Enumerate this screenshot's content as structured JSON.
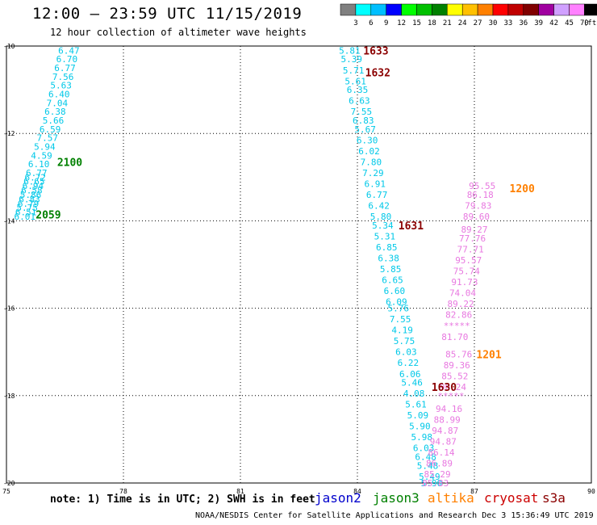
{
  "header": {
    "title": "12:00 – 23:59 UTC 11/15/2019",
    "subtitle": "12 hour collection of altimeter wave heights"
  },
  "colorbar": {
    "labels": [
      "3",
      "6",
      "9",
      "12",
      "15",
      "18",
      "21",
      "24",
      "27",
      "30",
      "33",
      "36",
      "39",
      "42",
      "45",
      "70",
      "(ft)"
    ],
    "colors": [
      "#808080",
      "#00ffff",
      "#00bfff",
      "#0000ff",
      "#00ff00",
      "#00c000",
      "#008000",
      "#ffff00",
      "#ffc000",
      "#ff8000",
      "#ff0000",
      "#c00000",
      "#800000",
      "#a000a0",
      "#d0a0ff",
      "#ff80ff",
      "#000000"
    ]
  },
  "footer": {
    "note": "note: 1) Time is in UTC; 2) SWH is in feet",
    "credit": "NOAA/NESDIS Center for Satellite Applications and Research   Dec  3 15:36:49 UTC 2019"
  },
  "satellites": [
    {
      "name": "jason2",
      "color": "#0000cc"
    },
    {
      "name": "jason3",
      "color": "#008000"
    },
    {
      "name": "altika",
      "color": "#ff8000"
    },
    {
      "name": "cryosat",
      "color": "#cc0000"
    },
    {
      "name": "s3a",
      "color": "#8b0000"
    }
  ],
  "chart_data": {
    "type": "scatter",
    "xlim": [
      75,
      90
    ],
    "ylim": [
      -20,
      -10
    ],
    "x_ticks": [
      75,
      78,
      81,
      84,
      87,
      90
    ],
    "y_ticks": [
      -10,
      -12,
      -14,
      -16,
      -18,
      -20
    ],
    "grid": true,
    "tracks": [
      {
        "color": "#00c8e8",
        "points": [
          [
            76.6,
            -10.1,
            "6.47"
          ],
          [
            76.55,
            -10.3,
            "6.70"
          ],
          [
            76.5,
            -10.5,
            "6.77"
          ],
          [
            76.45,
            -10.7,
            "7.56"
          ],
          [
            76.4,
            -10.9,
            "5.63"
          ],
          [
            76.35,
            -11.1,
            "6.40"
          ],
          [
            76.3,
            -11.3,
            "7.04"
          ],
          [
            76.25,
            -11.5,
            "6.38"
          ],
          [
            76.2,
            -11.7,
            "5.66"
          ],
          [
            76.12,
            -11.9,
            "6.59"
          ],
          [
            76.05,
            -12.1,
            "7.57"
          ],
          [
            75.98,
            -12.3,
            "5.94"
          ],
          [
            75.9,
            -12.5,
            "4.59"
          ],
          [
            75.83,
            -12.7,
            "6.10"
          ],
          [
            75.77,
            -12.9,
            "6.77"
          ],
          [
            75.74,
            -13.0,
            "6.72"
          ],
          [
            75.71,
            -13.1,
            "6.65"
          ],
          [
            75.68,
            -13.2,
            "6.94"
          ],
          [
            75.65,
            -13.3,
            "6.58"
          ],
          [
            75.62,
            -13.4,
            "5.86"
          ],
          [
            75.59,
            -13.5,
            "6.83"
          ],
          [
            75.56,
            -13.6,
            "6.79"
          ],
          [
            75.53,
            -13.7,
            "5.75"
          ],
          [
            75.5,
            -13.8,
            "6.51"
          ],
          [
            75.47,
            -13.9,
            "6.01"
          ]
        ]
      },
      {
        "color": "#00c8e8",
        "points": [
          [
            83.8,
            -10.1,
            "5.81"
          ],
          [
            83.85,
            -10.3,
            "5.39"
          ],
          [
            83.9,
            -10.55,
            "5.71"
          ],
          [
            83.95,
            -10.8,
            "5.61"
          ],
          [
            84.0,
            -11.0,
            "6.35"
          ],
          [
            84.05,
            -11.25,
            "6.63"
          ],
          [
            84.1,
            -11.5,
            "7.55"
          ],
          [
            84.15,
            -11.7,
            "6.83"
          ],
          [
            84.2,
            -11.9,
            "5.67"
          ],
          [
            84.25,
            -12.15,
            "6.30"
          ],
          [
            84.3,
            -12.4,
            "6.02"
          ],
          [
            84.35,
            -12.65,
            "7.80"
          ],
          [
            84.4,
            -12.9,
            "7.29"
          ],
          [
            84.45,
            -13.15,
            "6.91"
          ],
          [
            84.5,
            -13.4,
            "6.77"
          ],
          [
            84.55,
            -13.65,
            "6.42"
          ],
          [
            84.6,
            -13.9,
            "5.80"
          ],
          [
            84.65,
            -14.1,
            "5.34"
          ],
          [
            84.7,
            -14.35,
            "5.31"
          ],
          [
            84.75,
            -14.6,
            "6.85"
          ],
          [
            84.8,
            -14.85,
            "6.38"
          ],
          [
            84.85,
            -15.1,
            "5.85"
          ],
          [
            84.9,
            -15.35,
            "6.65"
          ],
          [
            84.95,
            -15.6,
            "6.60"
          ],
          [
            85.0,
            -15.85,
            "6.09"
          ],
          [
            85.05,
            -16.0,
            "5.76"
          ],
          [
            85.1,
            -16.25,
            "7.55"
          ],
          [
            85.15,
            -16.5,
            "4.19"
          ],
          [
            85.2,
            -16.75,
            "5.75"
          ],
          [
            85.25,
            -17.0,
            "6.03"
          ],
          [
            85.3,
            -17.25,
            "6.22"
          ],
          [
            85.35,
            -17.5,
            "6.06"
          ],
          [
            85.4,
            -17.7,
            "5.46"
          ],
          [
            85.45,
            -17.95,
            "4.08"
          ],
          [
            85.5,
            -18.2,
            "5.61"
          ],
          [
            85.55,
            -18.45,
            "5.09"
          ],
          [
            85.6,
            -18.7,
            "5.90"
          ],
          [
            85.65,
            -18.95,
            "5.98"
          ],
          [
            85.7,
            -19.2,
            "6.03"
          ],
          [
            85.75,
            -19.4,
            "6.48"
          ],
          [
            85.8,
            -19.6,
            "5.48"
          ],
          [
            85.85,
            -19.85,
            "5.49"
          ],
          [
            85.9,
            -20.0,
            "5.90"
          ]
        ]
      },
      {
        "color": "#e878e0",
        "points": [
          [
            87.2,
            -13.2,
            "95.55"
          ],
          [
            87.15,
            -13.4,
            "86.18"
          ],
          [
            87.1,
            -13.65,
            "79.83"
          ],
          [
            87.05,
            -13.9,
            "89.60"
          ],
          [
            87.0,
            -14.2,
            "89.27"
          ],
          [
            86.95,
            -14.4,
            "77.76"
          ],
          [
            86.9,
            -14.65,
            "77.71"
          ],
          [
            86.85,
            -14.9,
            "95.57"
          ],
          [
            86.8,
            -15.15,
            "75.74"
          ],
          [
            86.75,
            -15.4,
            "91.73"
          ],
          [
            86.7,
            -15.65,
            "74.04"
          ],
          [
            86.65,
            -15.9,
            "89.22"
          ],
          [
            86.6,
            -16.15,
            "82.86"
          ],
          [
            86.55,
            -16.4,
            "*****"
          ],
          [
            86.5,
            -16.65,
            "81.70"
          ],
          [
            86.6,
            -17.05,
            "85.76"
          ],
          [
            86.55,
            -17.3,
            "89.36"
          ],
          [
            86.5,
            -17.55,
            "85.52"
          ],
          [
            86.45,
            -17.8,
            "90.24"
          ],
          [
            86.4,
            -18.0,
            "*****"
          ],
          [
            86.35,
            -18.3,
            "94.16"
          ],
          [
            86.3,
            -18.55,
            "88.99"
          ],
          [
            86.25,
            -18.8,
            "94.87"
          ],
          [
            86.2,
            -19.05,
            "94.87"
          ],
          [
            86.15,
            -19.3,
            "86.14"
          ],
          [
            86.1,
            -19.55,
            "86.89"
          ],
          [
            86.05,
            -19.8,
            "85.29"
          ],
          [
            86.0,
            -20.0,
            "85.83"
          ]
        ]
      }
    ],
    "time_labels": [
      {
        "text": "2100",
        "x": 76.3,
        "y": -12.65,
        "color": "#008000"
      },
      {
        "text": "2059",
        "x": 75.75,
        "y": -13.85,
        "color": "#008000"
      },
      {
        "text": "1633",
        "x": 84.15,
        "y": -10.1,
        "color": "#8b0000"
      },
      {
        "text": "1632",
        "x": 84.2,
        "y": -10.6,
        "color": "#8b0000"
      },
      {
        "text": "1631",
        "x": 85.05,
        "y": -14.1,
        "color": "#8b0000"
      },
      {
        "text": "1630",
        "x": 85.9,
        "y": -17.8,
        "color": "#8b0000"
      },
      {
        "text": "1200",
        "x": 87.9,
        "y": -13.25,
        "color": "#ff8000"
      },
      {
        "text": "1201",
        "x": 87.05,
        "y": -17.05,
        "color": "#ff8000"
      }
    ]
  }
}
